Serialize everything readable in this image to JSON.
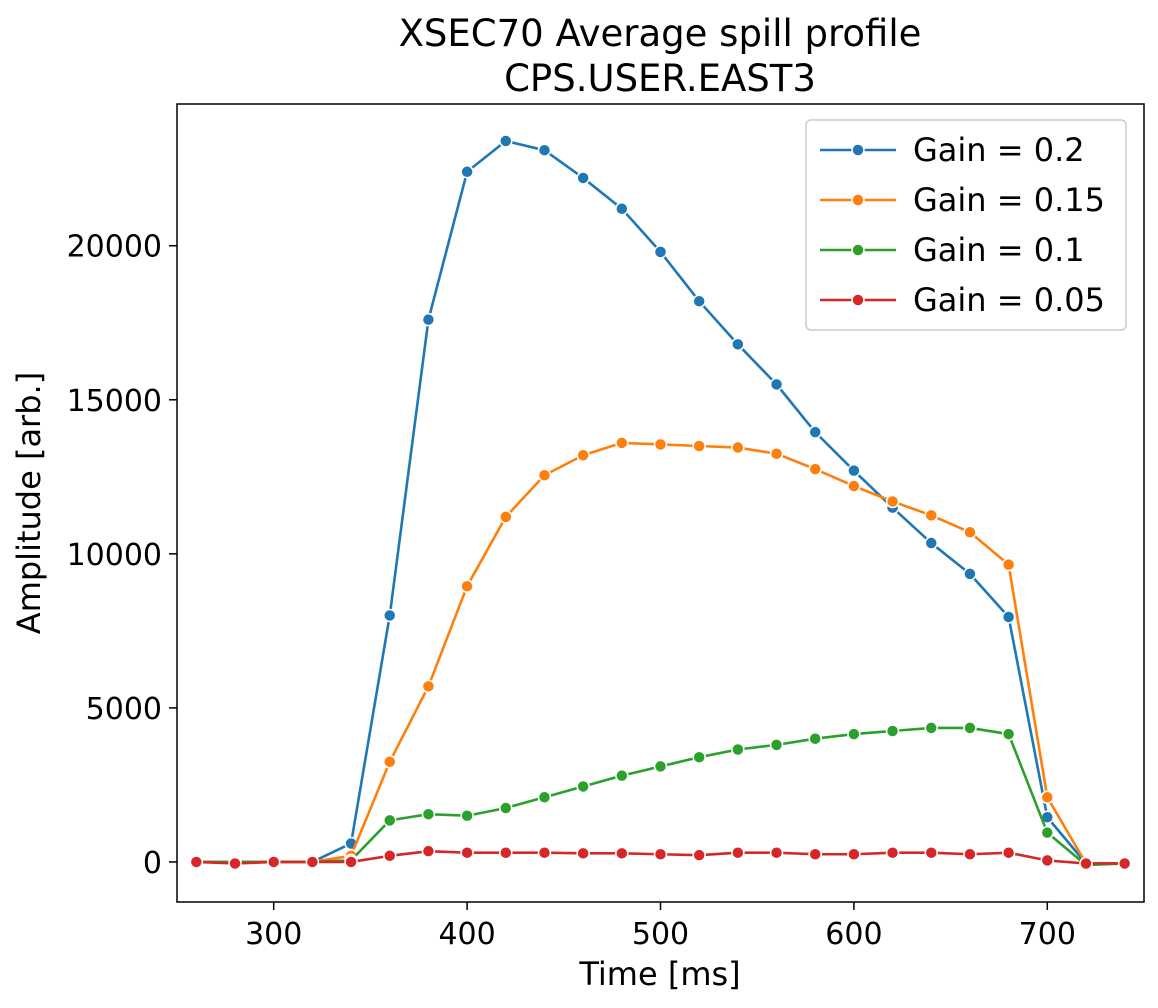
{
  "chart_data": {
    "type": "line",
    "title": "XSEC70 Average spill profile",
    "subtitle": "CPS.USER.EAST3",
    "xlabel": "Time [ms]",
    "ylabel": "Amplitude [arb.]",
    "xlim": [
      250,
      750
    ],
    "ylim": [
      -1300,
      24600
    ],
    "xticks": [
      300,
      400,
      500,
      600,
      700
    ],
    "yticks": [
      0,
      5000,
      10000,
      15000,
      20000
    ],
    "grid": false,
    "legend_position": "top-right",
    "x": [
      260,
      280,
      300,
      320,
      340,
      360,
      380,
      400,
      420,
      440,
      460,
      480,
      500,
      520,
      540,
      560,
      580,
      600,
      620,
      640,
      660,
      680,
      700,
      720,
      740
    ],
    "series": [
      {
        "name": "Gain = 0.2",
        "color": "#1f77b4",
        "values": [
          0,
          0,
          0,
          0,
          600,
          8000,
          17600,
          22400,
          23400,
          23100,
          22200,
          21200,
          19800,
          18200,
          16800,
          15500,
          13950,
          12700,
          11500,
          10350,
          9350,
          7950,
          1450,
          -50,
          -50
        ]
      },
      {
        "name": "Gain = 0.15",
        "color": "#ff7f0e",
        "values": [
          0,
          0,
          0,
          0,
          200,
          3250,
          5700,
          8950,
          11200,
          12550,
          13200,
          13600,
          13550,
          13500,
          13450,
          13250,
          12750,
          12200,
          11700,
          11250,
          10700,
          9650,
          2100,
          -50,
          -50
        ]
      },
      {
        "name": "Gain = 0.1",
        "color": "#2ca02c",
        "values": [
          0,
          0,
          0,
          0,
          50,
          1350,
          1550,
          1500,
          1750,
          2100,
          2450,
          2800,
          3100,
          3400,
          3650,
          3800,
          4000,
          4150,
          4250,
          4350,
          4350,
          4150,
          950,
          -100,
          -50
        ]
      },
      {
        "name": "Gain = 0.05",
        "color": "#d62728",
        "values": [
          0,
          -50,
          0,
          0,
          0,
          200,
          350,
          300,
          300,
          300,
          280,
          280,
          250,
          220,
          300,
          300,
          250,
          250,
          300,
          300,
          250,
          300,
          50,
          -50,
          -50
        ]
      }
    ]
  }
}
